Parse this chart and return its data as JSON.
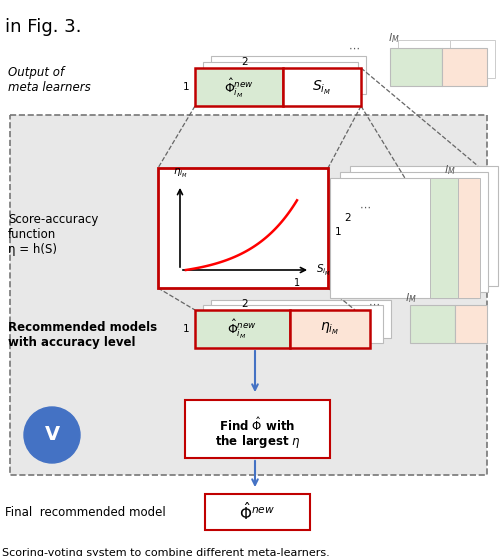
{
  "title_top": "in Fig. 3.",
  "caption": "Scoring-voting system to combine different meta-learners.",
  "colors": {
    "light_green": "#d9ead3",
    "light_orange": "#fce4d6",
    "red_border": "#c00000",
    "blue_arrow": "#4472c4",
    "bg_gray": "#e8e8e8",
    "shadow": "#d0d0d0"
  },
  "output_label": "Output of\nmeta learners",
  "score_label": "Score-accuracy\nfunction\nη = h(S)",
  "recommended_label": "Recommended models\nwith accuracy level",
  "find_box_text1": "Find $\\hat{\\Phi}$ with",
  "find_box_text2": "the largest $\\eta$",
  "final_label": "Final  recommended model"
}
